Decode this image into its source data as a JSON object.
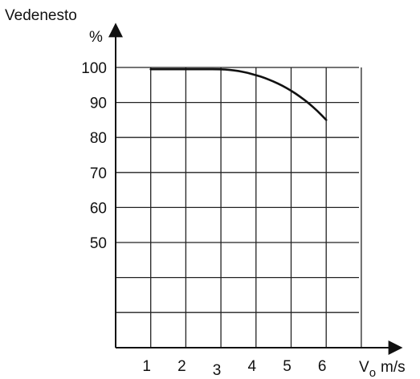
{
  "chart_data": {
    "type": "line",
    "ylabel": "Vedenesto",
    "yunit": "%",
    "xlabel_main": "V",
    "xlabel_sub": "o",
    "xunit": "m/s",
    "x_ticks": [
      "1",
      "2",
      "3",
      "4",
      "5",
      "6"
    ],
    "y_ticks": [
      "50",
      "60",
      "70",
      "80",
      "90",
      "100"
    ],
    "xlim": [
      0,
      7.2
    ],
    "ylim": [
      10,
      115
    ],
    "grid": true,
    "series": [
      {
        "x": [
          1,
          1.5,
          2,
          2.5,
          3,
          3.25,
          3.5,
          3.75,
          4,
          4.25,
          4.5,
          4.75,
          5,
          5.25,
          5.5,
          5.75,
          6
        ],
        "y": [
          99.5,
          99.5,
          99.5,
          99.5,
          99.5,
          99.3,
          99.0,
          98.5,
          97.8,
          97.0,
          96.0,
          94.8,
          93.4,
          91.7,
          89.8,
          87.6,
          85.0
        ]
      }
    ]
  }
}
